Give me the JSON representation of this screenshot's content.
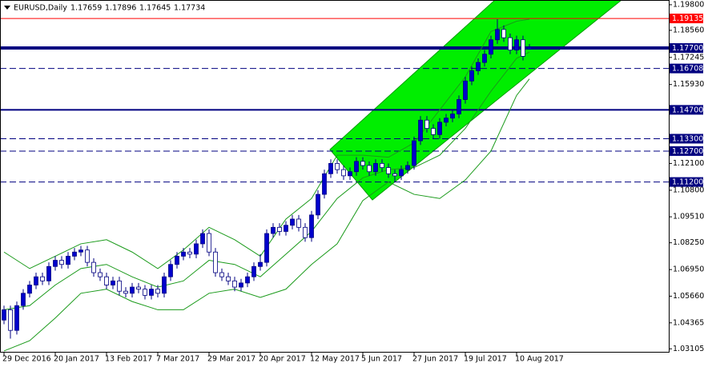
{
  "chart_data": {
    "type": "candlestick",
    "title": "EURUSD,Daily",
    "ylim": [
      1.0296,
      1.2003
    ],
    "yticks": [
      {
        "value": 1.198,
        "label": "1.19800"
      },
      {
        "value": 1.1856,
        "label": "1.18560"
      },
      {
        "value": 1.17245,
        "label": "1.17245"
      },
      {
        "value": 1.1593,
        "label": "1.15930"
      },
      {
        "value": 1.121,
        "label": "1.12100"
      },
      {
        "value": 1.108,
        "label": "1.10800"
      },
      {
        "value": 1.0951,
        "label": "1.09510"
      },
      {
        "value": 1.0825,
        "label": "1.08250"
      },
      {
        "value": 1.0695,
        "label": "1.06950"
      },
      {
        "value": 1.0566,
        "label": "1.05660"
      },
      {
        "value": 1.04365,
        "label": "1.04365"
      },
      {
        "value": 1.03105,
        "label": "1.03105"
      }
    ],
    "xticks": [
      {
        "value": 0,
        "label": "29 Dec 2016"
      },
      {
        "value": 8,
        "label": "20 Jan 2017"
      },
      {
        "value": 16,
        "label": "13 Feb 2017"
      },
      {
        "value": 24,
        "label": "7 Mar 2017"
      },
      {
        "value": 32,
        "label": "29 Mar 2017"
      },
      {
        "value": 40,
        "label": "20 Apr 2017"
      },
      {
        "value": 48,
        "label": "12 May 2017"
      },
      {
        "value": 56,
        "label": "5 Jun 2017"
      },
      {
        "value": 64,
        "label": "27 Jun 2017"
      },
      {
        "value": 72,
        "label": "19 Jul 2017"
      },
      {
        "value": 80,
        "label": "10 Aug 2017"
      }
    ],
    "up_color": "#0000cc",
    "down_color": "#ffffff",
    "candles": [
      [
        1.045,
        1.052,
        1.043,
        1.05
      ],
      [
        1.05,
        1.052,
        1.036,
        1.04
      ],
      [
        1.04,
        1.054,
        1.038,
        1.052
      ],
      [
        1.052,
        1.06,
        1.05,
        1.058
      ],
      [
        1.058,
        1.064,
        1.056,
        1.062
      ],
      [
        1.062,
        1.068,
        1.06,
        1.066
      ],
      [
        1.066,
        1.068,
        1.062,
        1.064
      ],
      [
        1.064,
        1.073,
        1.062,
        1.071
      ],
      [
        1.071,
        1.076,
        1.069,
        1.074
      ],
      [
        1.074,
        1.076,
        1.07,
        1.072
      ],
      [
        1.072,
        1.078,
        1.07,
        1.076
      ],
      [
        1.076,
        1.08,
        1.074,
        1.078
      ],
      [
        1.078,
        1.081,
        1.076,
        1.079
      ],
      [
        1.079,
        1.081,
        1.071,
        1.073
      ],
      [
        1.073,
        1.075,
        1.066,
        1.068
      ],
      [
        1.068,
        1.07,
        1.064,
        1.066
      ],
      [
        1.066,
        1.068,
        1.06,
        1.062
      ],
      [
        1.062,
        1.066,
        1.06,
        1.064
      ],
      [
        1.064,
        1.066,
        1.057,
        1.059
      ],
      [
        1.059,
        1.061,
        1.056,
        1.058
      ],
      [
        1.058,
        1.063,
        1.056,
        1.061
      ],
      [
        1.061,
        1.063,
        1.058,
        1.06
      ],
      [
        1.06,
        1.062,
        1.055,
        1.057
      ],
      [
        1.057,
        1.062,
        1.055,
        1.06
      ],
      [
        1.06,
        1.062,
        1.056,
        1.058
      ],
      [
        1.058,
        1.068,
        1.056,
        1.066
      ],
      [
        1.066,
        1.074,
        1.064,
        1.072
      ],
      [
        1.072,
        1.078,
        1.07,
        1.076
      ],
      [
        1.076,
        1.08,
        1.074,
        1.078
      ],
      [
        1.078,
        1.08,
        1.075,
        1.077
      ],
      [
        1.077,
        1.084,
        1.075,
        1.082
      ],
      [
        1.082,
        1.089,
        1.08,
        1.087
      ],
      [
        1.087,
        1.089,
        1.076,
        1.078
      ],
      [
        1.078,
        1.08,
        1.066,
        1.068
      ],
      [
        1.068,
        1.07,
        1.064,
        1.066
      ],
      [
        1.066,
        1.068,
        1.062,
        1.064
      ],
      [
        1.064,
        1.066,
        1.059,
        1.061
      ],
      [
        1.061,
        1.065,
        1.059,
        1.063
      ],
      [
        1.063,
        1.068,
        1.061,
        1.066
      ],
      [
        1.066,
        1.073,
        1.064,
        1.071
      ],
      [
        1.071,
        1.077,
        1.069,
        1.073
      ],
      [
        1.073,
        1.089,
        1.071,
        1.087
      ],
      [
        1.087,
        1.092,
        1.085,
        1.09
      ],
      [
        1.09,
        1.092,
        1.086,
        1.088
      ],
      [
        1.088,
        1.093,
        1.086,
        1.091
      ],
      [
        1.091,
        1.096,
        1.089,
        1.094
      ],
      [
        1.094,
        1.096,
        1.088,
        1.09
      ],
      [
        1.09,
        1.092,
        1.083,
        1.085
      ],
      [
        1.085,
        1.098,
        1.083,
        1.096
      ],
      [
        1.096,
        1.108,
        1.094,
        1.106
      ],
      [
        1.106,
        1.118,
        1.104,
        1.116
      ],
      [
        1.116,
        1.123,
        1.114,
        1.121
      ],
      [
        1.121,
        1.123,
        1.116,
        1.118
      ],
      [
        1.118,
        1.12,
        1.113,
        1.115
      ],
      [
        1.115,
        1.119,
        1.113,
        1.117
      ],
      [
        1.117,
        1.124,
        1.115,
        1.122
      ],
      [
        1.122,
        1.124,
        1.118,
        1.12
      ],
      [
        1.12,
        1.122,
        1.115,
        1.117
      ],
      [
        1.117,
        1.123,
        1.115,
        1.121
      ],
      [
        1.121,
        1.123,
        1.117,
        1.119
      ],
      [
        1.119,
        1.121,
        1.114,
        1.116
      ],
      [
        1.116,
        1.118,
        1.112,
        1.115
      ],
      [
        1.115,
        1.12,
        1.113,
        1.118
      ],
      [
        1.118,
        1.122,
        1.116,
        1.12
      ],
      [
        1.12,
        1.134,
        1.118,
        1.132
      ],
      [
        1.132,
        1.144,
        1.13,
        1.142
      ],
      [
        1.142,
        1.144,
        1.136,
        1.138
      ],
      [
        1.138,
        1.14,
        1.133,
        1.135
      ],
      [
        1.135,
        1.143,
        1.133,
        1.141
      ],
      [
        1.141,
        1.145,
        1.139,
        1.143
      ],
      [
        1.143,
        1.147,
        1.141,
        1.145
      ],
      [
        1.145,
        1.154,
        1.143,
        1.152
      ],
      [
        1.152,
        1.163,
        1.15,
        1.161
      ],
      [
        1.161,
        1.168,
        1.159,
        1.166
      ],
      [
        1.166,
        1.172,
        1.164,
        1.17
      ],
      [
        1.17,
        1.176,
        1.168,
        1.174
      ],
      [
        1.174,
        1.183,
        1.172,
        1.181
      ],
      [
        1.181,
        1.191,
        1.179,
        1.186
      ],
      [
        1.186,
        1.188,
        1.18,
        1.182
      ],
      [
        1.182,
        1.184,
        1.174,
        1.176
      ],
      [
        1.176,
        1.183,
        1.174,
        1.181
      ],
      [
        1.181,
        1.183,
        1.171,
        1.173
      ],
      [
        1.17659,
        1.17896,
        1.17645,
        1.17734
      ]
    ],
    "bands": {
      "color": "#1a9a1a",
      "index": [
        0,
        4,
        8,
        12,
        16,
        20,
        24,
        28,
        32,
        36,
        40,
        44,
        48,
        52,
        56,
        60,
        64,
        68,
        72,
        76,
        80,
        82
      ],
      "series": [
        {
          "values": [
            1.078,
            1.07,
            1.076,
            1.082,
            1.084,
            1.078,
            1.07,
            1.079,
            1.09,
            1.084,
            1.076,
            1.094,
            1.104,
            1.125,
            1.125,
            1.124,
            1.131,
            1.147,
            1.163,
            1.185,
            1.19,
            1.191
          ]
        },
        {
          "values": [
            1.05,
            1.052,
            1.062,
            1.07,
            1.072,
            1.066,
            1.061,
            1.064,
            1.074,
            1.072,
            1.066,
            1.077,
            1.088,
            1.104,
            1.114,
            1.118,
            1.119,
            1.125,
            1.138,
            1.156,
            1.172,
            1.175
          ]
        },
        {
          "values": [
            1.03,
            1.035,
            1.046,
            1.058,
            1.06,
            1.054,
            1.05,
            1.05,
            1.058,
            1.06,
            1.056,
            1.06,
            1.072,
            1.082,
            1.103,
            1.112,
            1.106,
            1.104,
            1.113,
            1.127,
            1.154,
            1.162
          ]
        }
      ]
    },
    "levels": [
      {
        "value": 1.19135,
        "color": "#ff0000",
        "style": "solid",
        "width": 1
      },
      {
        "value": 1.177,
        "label": "1.17700",
        "color": "#000080",
        "style": "solid",
        "width": 4
      },
      {
        "value": 1.16708,
        "color": "#000080",
        "style": "dashed",
        "width": 1
      },
      {
        "value": 1.147,
        "label": "1.14700",
        "color": "#000080",
        "style": "solid",
        "width": 2
      },
      {
        "value": 1.133,
        "label": "1.13300",
        "color": "#000080",
        "style": "dashed",
        "width": 1
      },
      {
        "value": 1.127,
        "label": "1.12700",
        "color": "#000080",
        "style": "dashed",
        "width": 1
      },
      {
        "value": 1.112,
        "label": "1.11200",
        "color": "#000080",
        "style": "dashed",
        "width": 1
      }
    ]
  }
}
